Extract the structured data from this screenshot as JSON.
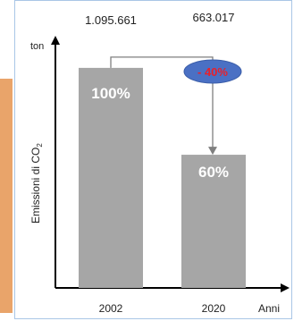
{
  "chart_data": {
    "type": "bar",
    "categories": [
      "2002",
      "2020"
    ],
    "values": [
      1095661,
      663017
    ],
    "value_labels": [
      "1.095.661",
      "663.017"
    ],
    "bar_labels": [
      "100%",
      "60%"
    ],
    "reduction_label": "- 40%",
    "ylabel": "Emissioni di CO",
    "ylabel_subscript": "2",
    "yunit": "ton",
    "xlabel": "Anni",
    "ylim": [
      0,
      1300000
    ],
    "grid": false,
    "colors": {
      "bar": "#a6a6a6",
      "bar_text": "#ffffff",
      "ellipse_fill": "#4a70c4",
      "ellipse_text": "#e8202a",
      "connector": "#7f7f7f",
      "accent_strip": "#e9a46a",
      "frame_border": "#a9c6e6"
    }
  }
}
